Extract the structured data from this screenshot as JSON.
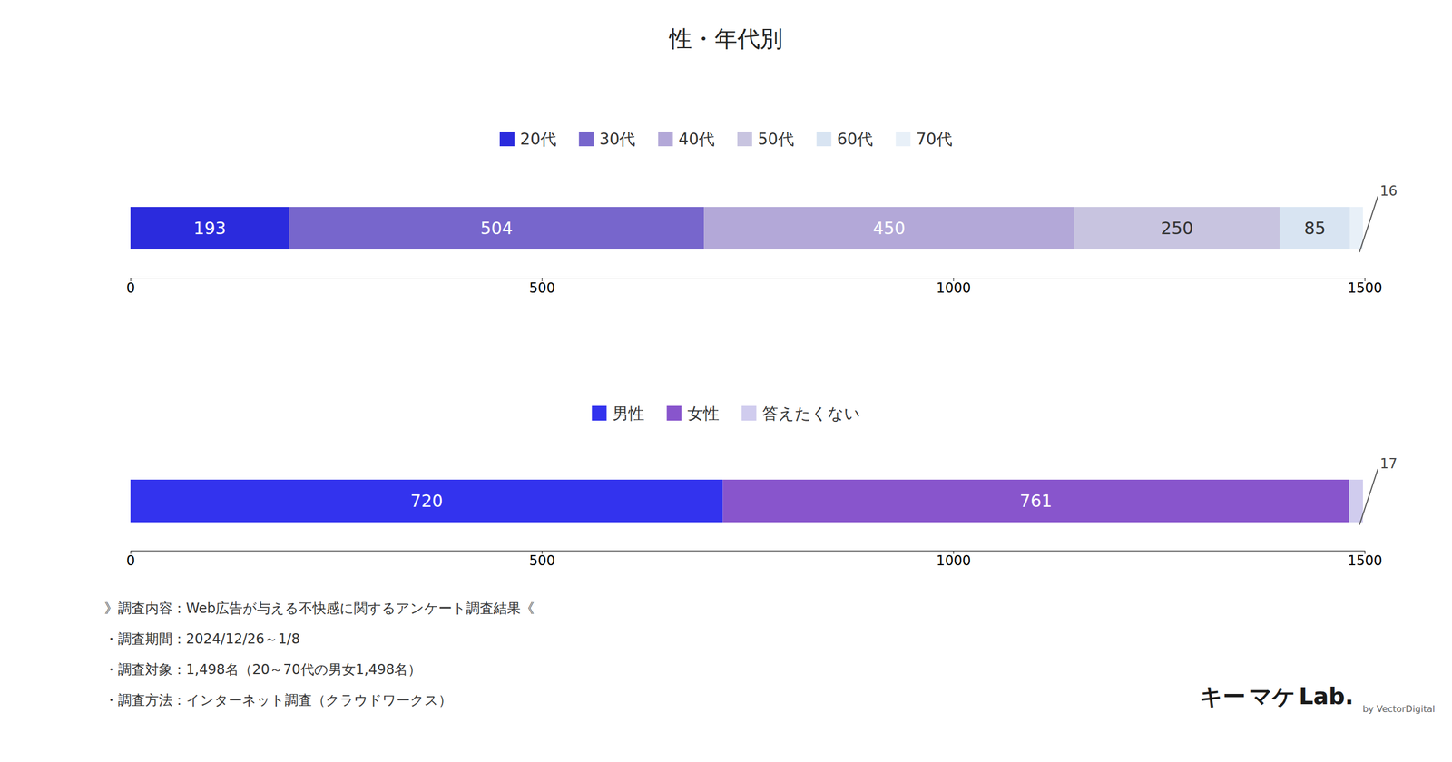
{
  "chart_data": [
    {
      "type": "bar",
      "title": "性・年代別",
      "orientation": "horizontal",
      "stacked": true,
      "data_labels": true,
      "legend": "top",
      "grid": false,
      "tick_labels": "x",
      "categories": [
        null
      ],
      "series": [
        {
          "name": "20代",
          "color": "#2b2bdd",
          "values": [
            193
          ]
        },
        {
          "name": "30代",
          "color": "#7766cc",
          "values": [
            504
          ]
        },
        {
          "name": "40代",
          "color": "#b3a8d8",
          "values": [
            450
          ]
        },
        {
          "name": "50代",
          "color": "#c8c4e0",
          "values": [
            250
          ]
        },
        {
          "name": "60代",
          "color": "#d8e4f2",
          "values": [
            85
          ]
        },
        {
          "name": "70代",
          "color": "#e8f0f8",
          "values": [
            16
          ]
        }
      ],
      "xlim": [
        0,
        1500
      ],
      "xticks": [
        0,
        500,
        1000,
        1500
      ],
      "annotations": [
        "キー",
        "マケ",
        "Lab.",
        "by VectorDigital"
      ]
    },
    {
      "type": "bar",
      "orientation": "horizontal",
      "stacked": true,
      "data_labels": true,
      "legend": "top",
      "grid": false,
      "tick_labels": "x",
      "categories": [
        null
      ],
      "series": [
        {
          "name": "男性",
          "color": "#3333ee",
          "values": [
            720
          ]
        },
        {
          "name": "女性",
          "color": "#8855cc",
          "values": [
            761
          ]
        },
        {
          "name": "答えたくない",
          "color": "#d0ccee",
          "values": [
            17
          ]
        }
      ],
      "xlim": [
        0,
        1500
      ],
      "xticks": [
        0,
        500,
        1000,
        1500
      ],
      "annotations": [
        "》調査内容：Web広告が与える不快感に関するアンケート調査結果《",
        "・調査期間：2024/12/26～1/8",
        "・調査対象：1,498名（20～70代の男女1,498名）",
        "・調査方法：インターネット調査（クラウドワークス）"
      ]
    }
  ]
}
